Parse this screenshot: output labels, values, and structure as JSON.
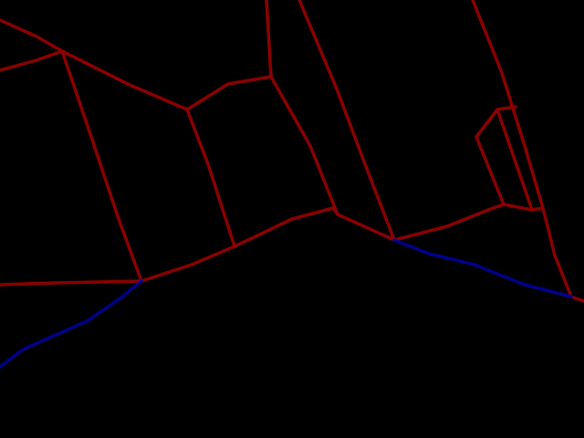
{
  "colors": {
    "background": "#000000",
    "boundary": "#8b0000",
    "ground_edge": "#00008b"
  }
}
